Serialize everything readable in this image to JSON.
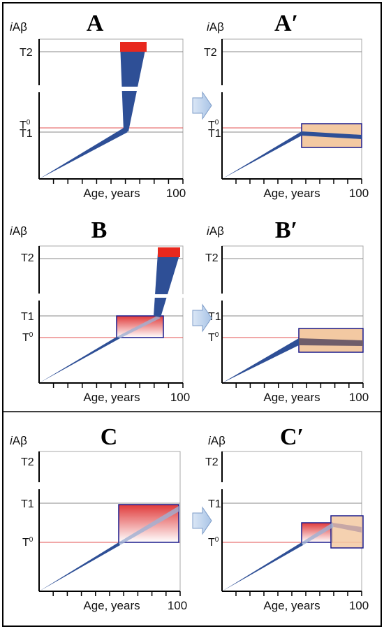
{
  "figure": {
    "panels": [
      {
        "id": "A",
        "letter": "A",
        "ylabel_i": "i",
        "ylabel_rest": "Aβ",
        "xlabel": "Age, years",
        "xmax_label": "100",
        "t2": "T2",
        "t1": "T1",
        "t0": "T",
        "t0_sup": "0"
      },
      {
        "id": "A2",
        "letter": "A′",
        "ylabel_i": "i",
        "ylabel_rest": "Aβ",
        "xlabel": "Age, years",
        "xmax_label": "100",
        "t2": "T2",
        "t1": "T1",
        "t0": "T",
        "t0_sup": "0"
      },
      {
        "id": "B",
        "letter": "B",
        "ylabel_i": "i",
        "ylabel_rest": "Aβ",
        "xlabel": "Age, years",
        "xmax_label": "100",
        "t2": "T2",
        "t1": "T1",
        "t0": "T",
        "t0_sup": "0"
      },
      {
        "id": "B2",
        "letter": "B′",
        "ylabel_i": "i",
        "ylabel_rest": "Aβ",
        "xlabel": "Age, years",
        "xmax_label": "100",
        "t2": "T2",
        "t1": "T1",
        "t0": "T",
        "t0_sup": "0"
      },
      {
        "id": "C",
        "letter": "C",
        "ylabel_i": "i",
        "ylabel_rest": "Aβ",
        "xlabel": "Age, years",
        "xmax_label": "100",
        "t2": "T2",
        "t1": "T1",
        "t0": "T",
        "t0_sup": "0"
      },
      {
        "id": "C2",
        "letter": "C′",
        "ylabel_i": "i",
        "ylabel_rest": "Aβ",
        "xlabel": "Age, years",
        "xmax_label": "100",
        "t2": "T2",
        "t1": "T1",
        "t0": "T",
        "t0_sup": "0"
      }
    ],
    "colors": {
      "trajectory": "#2e4f96",
      "threshold_red": "#e35050",
      "red_cap": "#e8281e",
      "box_border": "#1a1a8c",
      "box_fill_peach": "#f3c9a2",
      "arrow_fill": "#bcd2ec"
    }
  }
}
